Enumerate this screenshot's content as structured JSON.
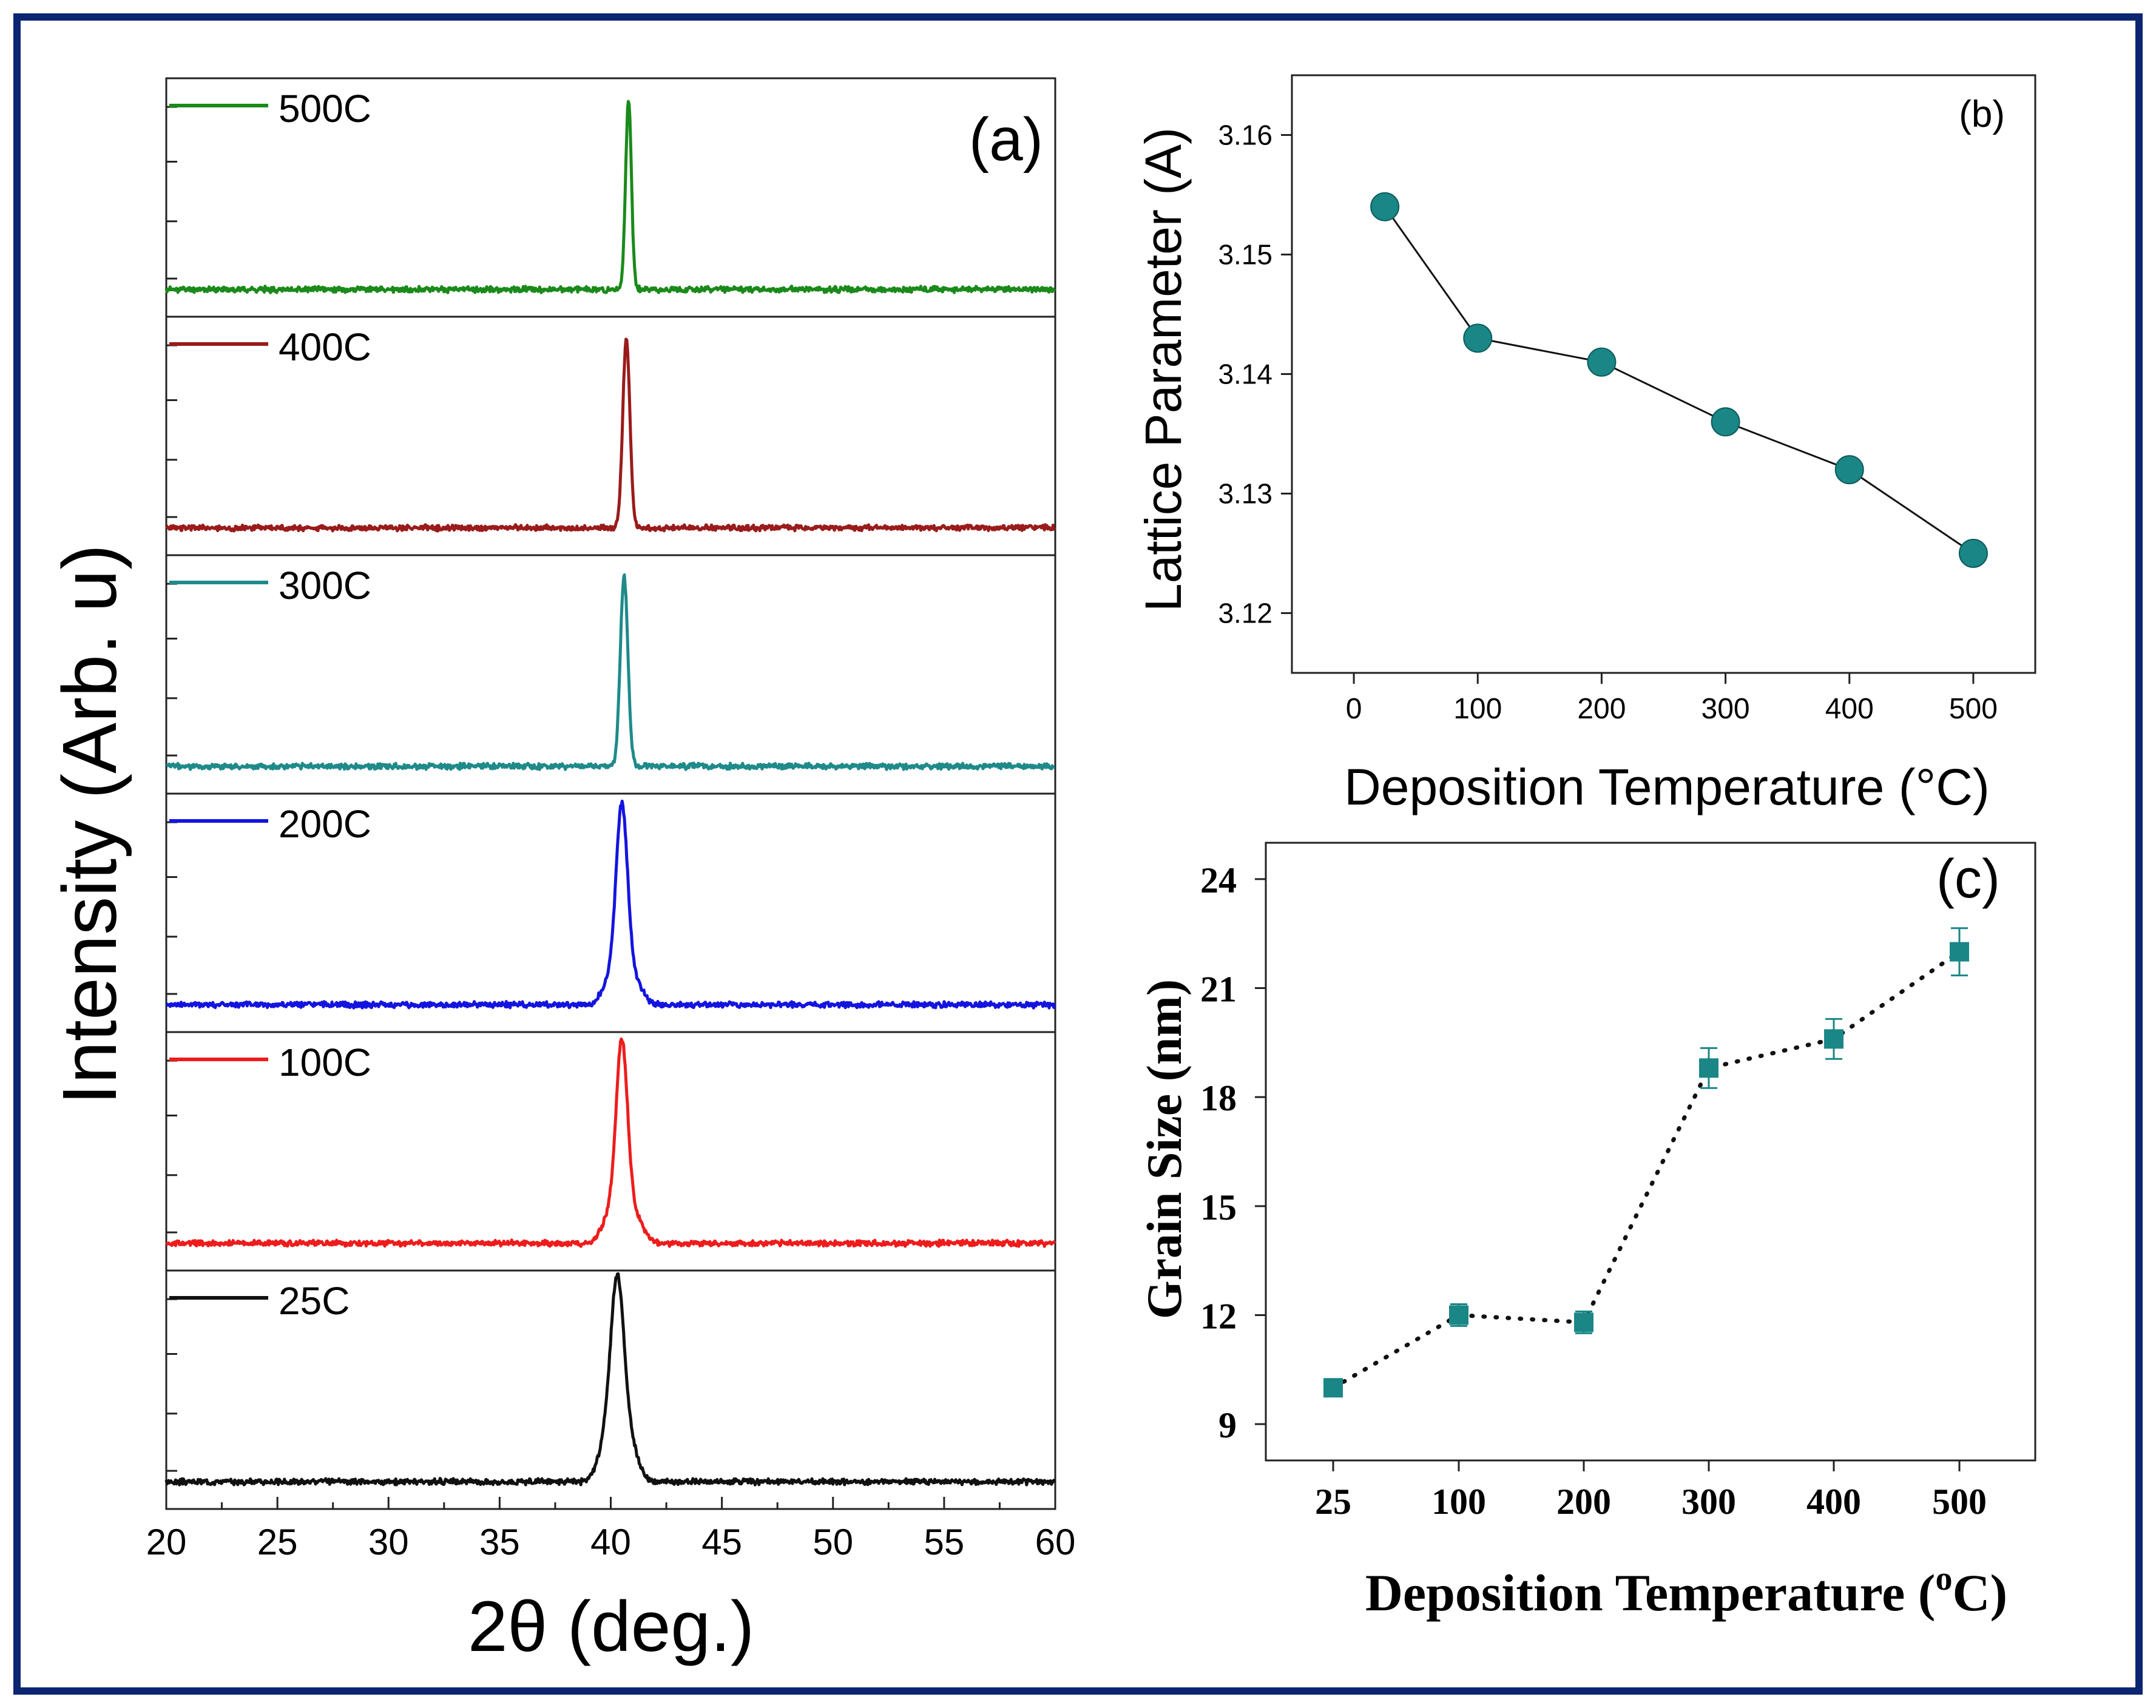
{
  "chart_data": [
    {
      "type": "line",
      "panel_label": "(a)",
      "title": "",
      "xlabel": "2θ (deg.)",
      "ylabel": "Intensity (Arb. u)",
      "xlim": [
        20,
        60
      ],
      "x_ticks": [
        "20",
        "25",
        "30",
        "35",
        "40",
        "45",
        "50",
        "55",
        "60"
      ],
      "stacked": true,
      "series": [
        {
          "name": "500C",
          "color": "#1a8a1a",
          "peak_2theta": 40.8,
          "peak_width": 0.13,
          "shoulder": 0.0,
          "noise_seed": 11
        },
        {
          "name": "400C",
          "color": "#9a1b1b",
          "peak_2theta": 40.7,
          "peak_width": 0.16,
          "shoulder": 0.0,
          "noise_seed": 23
        },
        {
          "name": "300C",
          "color": "#1f8a8a",
          "peak_2theta": 40.6,
          "peak_width": 0.17,
          "shoulder": 0.0,
          "noise_seed": 37
        },
        {
          "name": "200C",
          "color": "#1414e0",
          "peak_2theta": 40.5,
          "peak_width": 0.26,
          "shoulder": 0.12,
          "noise_seed": 41
        },
        {
          "name": "100C",
          "color": "#ee1c1c",
          "peak_2theta": 40.5,
          "peak_width": 0.26,
          "shoulder": 0.14,
          "noise_seed": 53
        },
        {
          "name": "25C",
          "color": "#111111",
          "peak_2theta": 40.3,
          "peak_width": 0.3,
          "shoulder": 0.18,
          "noise_seed": 67
        }
      ]
    },
    {
      "type": "line",
      "panel_label": "(b)",
      "title": "",
      "xlabel": "Deposition Temperature (°C)",
      "ylabel": "Lattice Parameter (A)",
      "xlim": [
        -50,
        550
      ],
      "ylim": [
        3.115,
        3.165
      ],
      "x_ticks": [
        "0",
        "100",
        "200",
        "300",
        "400",
        "500"
      ],
      "y_ticks": [
        "3.12",
        "3.13",
        "3.14",
        "3.15",
        "3.16"
      ],
      "marker": "circle",
      "color": "#1a8686",
      "x": [
        25,
        100,
        200,
        300,
        400,
        500
      ],
      "y": [
        3.154,
        3.143,
        3.141,
        3.136,
        3.132,
        3.125
      ]
    },
    {
      "type": "line",
      "panel_label": "(c)",
      "title": "",
      "xlabel": "Deposition Temperature (",
      "xlabel_sup": "o",
      "xlabel_end": "C)",
      "ylabel": "Grain Size (nm)",
      "ylim": [
        8,
        25
      ],
      "categories": [
        "25",
        "100",
        "200",
        "300",
        "400",
        "500"
      ],
      "y_ticks": [
        "9",
        "12",
        "15",
        "18",
        "21",
        "24"
      ],
      "marker": "square",
      "line_style": "dotted",
      "color": "#1a8686",
      "y": [
        10.0,
        12.0,
        11.8,
        18.8,
        19.6,
        22.0
      ],
      "error": [
        0.2,
        0.3,
        0.3,
        0.55,
        0.55,
        0.65
      ]
    }
  ]
}
